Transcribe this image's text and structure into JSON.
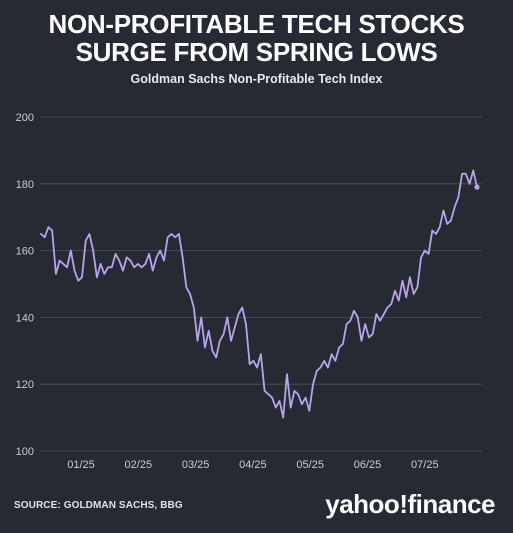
{
  "header": {
    "title_line1": "NON-PROFITABLE TECH STOCKS",
    "title_line2": "SURGE FROM SPRING LOWS",
    "subtitle": "Goldman Sachs Non-Profitable Tech Index"
  },
  "footer": {
    "source": "SOURCE: GOLDMAN SACHS, BBG",
    "logo": "yahoo!finance"
  },
  "colors": {
    "background": "#262a33",
    "line": "#b7a3ee",
    "grid": "#4a4f5a"
  },
  "chart_data": {
    "type": "line",
    "title": "NON-PROFITABLE TECH STOCKS SURGE FROM SPRING LOWS",
    "subtitle": "Goldman Sachs Non-Profitable Tech Index",
    "ylim": [
      100,
      200
    ],
    "y_ticks": [
      100,
      120,
      140,
      160,
      180,
      200
    ],
    "x_ticks": [
      "01/25",
      "02/25",
      "03/25",
      "04/25",
      "05/25",
      "06/25",
      "07/25"
    ],
    "grid": true,
    "series": [
      {
        "values": [
          165,
          164,
          167,
          166,
          153,
          157,
          156,
          155,
          160,
          154,
          151,
          152,
          163,
          165,
          160,
          152,
          156,
          153,
          155,
          155,
          159,
          157,
          154,
          158,
          157,
          155,
          156,
          155,
          156,
          159,
          154,
          158,
          160,
          157,
          164,
          165,
          164,
          165,
          158,
          149,
          147,
          143,
          133,
          140,
          131,
          136,
          130,
          128,
          133,
          135,
          140,
          133,
          137,
          141,
          143,
          138,
          126,
          127,
          125,
          129,
          118,
          117,
          116,
          113,
          115,
          110,
          123,
          113,
          118,
          117,
          114,
          116,
          112,
          120,
          124,
          125,
          127,
          125,
          129,
          127,
          131,
          132,
          138,
          139,
          142,
          140,
          133,
          138,
          134,
          135,
          141,
          139,
          141,
          143,
          144,
          148,
          145,
          151,
          146,
          152,
          147,
          149,
          158,
          160,
          159,
          166,
          165,
          167,
          172,
          168,
          169,
          173,
          176,
          183,
          183,
          180,
          184,
          179
        ]
      }
    ]
  }
}
